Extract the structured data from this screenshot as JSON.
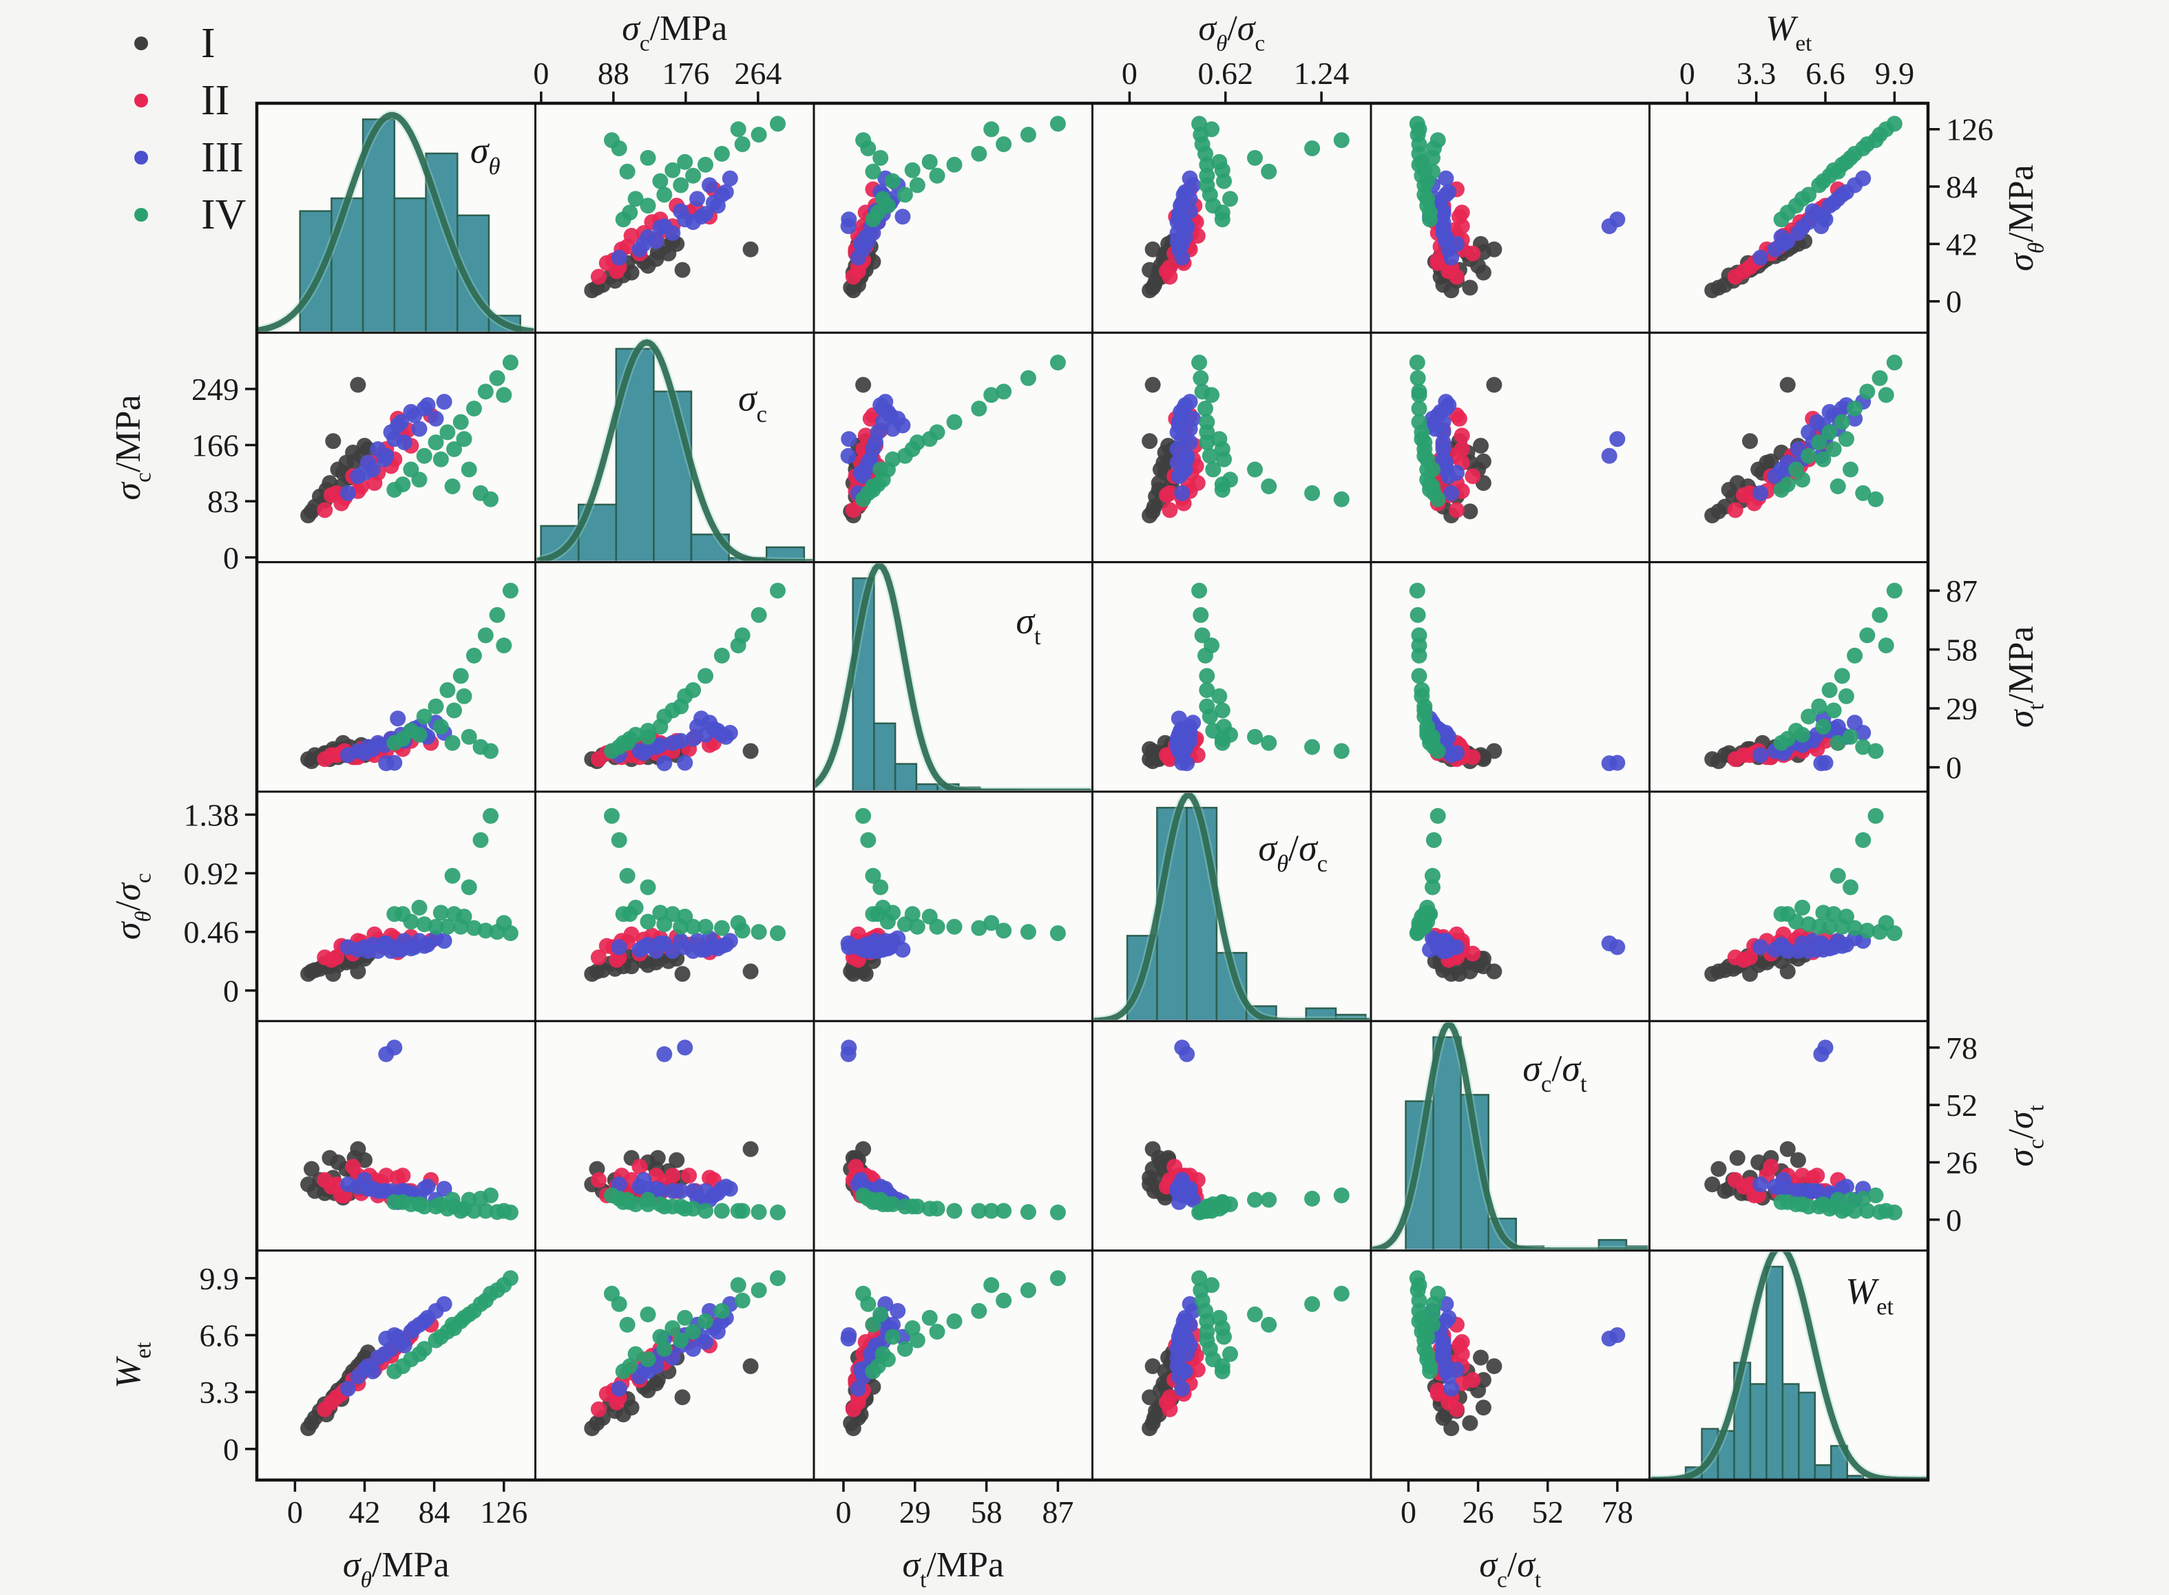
{
  "legend": {
    "items": [
      {
        "label": "I",
        "color": "#3f3f3f"
      },
      {
        "label": "II",
        "color": "#e72652"
      },
      {
        "label": "III",
        "color": "#4b50ce"
      },
      {
        "label": "IV",
        "color": "#2aa06f"
      }
    ]
  },
  "chart_data": {
    "type": "scatterplot-matrix",
    "title": "",
    "grid": "6x6 pairplot, histograms with normal-density curves on the diagonal",
    "style": {
      "bar_fill": "#3d8d9b",
      "bar_edge": "#2d5f4f",
      "curve_color": "#2e6b52",
      "curve_halo": "#9fd8c6",
      "frame_color": "#141414",
      "cell_fill": "#fbfbfa",
      "text_color": "#1a1a1a"
    },
    "variables": [
      {
        "id": "stheta",
        "axis_side_col": "bottom",
        "axis_side_row": "right",
        "label_segments": [
          {
            "t": "σ",
            "it": true
          },
          {
            "t": "θ",
            "sub": true,
            "it": true
          },
          {
            "t": "/MPa"
          }
        ],
        "short_segments": [
          {
            "t": "σ",
            "it": true
          },
          {
            "t": "θ",
            "sub": true,
            "it": true
          }
        ],
        "range": [
          -23,
          145
        ],
        "ticks_col": [
          0,
          42,
          84,
          126
        ],
        "ticks_row": [
          0,
          42,
          84,
          126
        ],
        "diag_label_pos": [
          0.82,
          0.26
        ],
        "hist": {
          "span_start": 0.155,
          "bin_width": 0.113,
          "heights": [
            0.57,
            0.63,
            1.0,
            0.63,
            0.84,
            0.55,
            0.08
          ],
          "curve_mu": 0.485,
          "curve_sigma": 0.16,
          "curve_peak": 1.02
        }
      },
      {
        "id": "sc",
        "axis_side_col": "top",
        "axis_side_row": "left",
        "label_segments": [
          {
            "t": "σ",
            "it": true
          },
          {
            "t": "c",
            "sub": true
          },
          {
            "t": "/MPa"
          }
        ],
        "short_segments": [
          {
            "t": "σ",
            "it": true
          },
          {
            "t": "c",
            "sub": true
          }
        ],
        "range": [
          -7,
          332
        ],
        "ticks_col": [
          0,
          88,
          176,
          264
        ],
        "ticks_row": [
          0,
          83,
          166,
          249
        ],
        "diag_label_pos": [
          0.78,
          0.34
        ],
        "hist": {
          "span_start": 0.02,
          "bin_width": 0.135,
          "heights": [
            0.17,
            0.27,
            1.0,
            0.8,
            0.13,
            0.02,
            0.07
          ],
          "curve_mu": 0.4,
          "curve_sigma": 0.125,
          "curve_peak": 1.03
        }
      },
      {
        "id": "st",
        "axis_side_col": "bottom",
        "axis_side_row": "right",
        "label_segments": [
          {
            "t": "σ",
            "it": true
          },
          {
            "t": "t",
            "sub": true
          },
          {
            "t": "/MPa"
          }
        ],
        "short_segments": [
          {
            "t": "σ",
            "it": true
          },
          {
            "t": "t",
            "sub": true
          }
        ],
        "range": [
          -12,
          101
        ],
        "ticks_col": [
          0,
          29,
          58,
          87
        ],
        "ticks_row": [
          0,
          29,
          58,
          87
        ],
        "diag_label_pos": [
          0.77,
          0.31
        ],
        "hist": {
          "span_start": 0.14,
          "bin_width": 0.076,
          "heights": [
            1.0,
            0.32,
            0.13,
            0.035,
            0.035,
            0.02,
            0.01,
            0.01
          ],
          "curve_mu": 0.235,
          "curve_sigma": 0.088,
          "curve_peak": 1.06
        }
      },
      {
        "id": "rthetac",
        "axis_side_col": "top",
        "axis_side_row": "left",
        "label_segments": [
          {
            "t": "σ",
            "it": true
          },
          {
            "t": "θ",
            "sub": true,
            "it": true
          },
          {
            "t": "/"
          },
          {
            "t": "σ",
            "it": true
          },
          {
            "t": "c",
            "sub": true
          }
        ],
        "short_segments": [
          {
            "t": "σ",
            "it": true
          },
          {
            "t": "θ",
            "sub": true,
            "it": true
          },
          {
            "t": "/"
          },
          {
            "t": "σ",
            "it": true
          },
          {
            "t": "c",
            "sub": true
          }
        ],
        "range": [
          -0.24,
          1.56
        ],
        "ticks_col": [
          0,
          0.62,
          1.24
        ],
        "ticks_row": [
          0,
          0.46,
          0.92,
          1.38
        ],
        "diag_label_pos": [
          0.72,
          0.3
        ],
        "hist": {
          "span_start": 0.125,
          "bin_width": 0.107,
          "heights": [
            0.4,
            1.0,
            1.0,
            0.32,
            0.07,
            0.0,
            0.06,
            0.03
          ],
          "curve_mu": 0.345,
          "curve_sigma": 0.092,
          "curve_peak": 1.06
        }
      },
      {
        "id": "rct",
        "axis_side_col": "bottom",
        "axis_side_row": "right",
        "label_segments": [
          {
            "t": "σ",
            "it": true
          },
          {
            "t": "c",
            "sub": true
          },
          {
            "t": "/"
          },
          {
            "t": "σ",
            "it": true
          },
          {
            "t": "t",
            "sub": true
          }
        ],
        "short_segments": [
          {
            "t": "σ",
            "it": true
          },
          {
            "t": "c",
            "sub": true
          },
          {
            "t": "/"
          },
          {
            "t": "σ",
            "it": true
          },
          {
            "t": "t",
            "sub": true
          }
        ],
        "range": [
          -14,
          90
        ],
        "ticks_col": [
          0,
          26,
          52,
          78
        ],
        "ticks_row": [
          0,
          26,
          52,
          78
        ],
        "diag_label_pos": [
          0.66,
          0.26
        ],
        "hist": {
          "span_start": 0.125,
          "bin_width": 0.099,
          "heights": [
            0.7,
            1.0,
            0.73,
            0.15,
            0.02,
            0,
            0,
            0.05,
            0.02
          ],
          "curve_mu": 0.28,
          "curve_sigma": 0.082,
          "curve_peak": 1.06
        }
      },
      {
        "id": "wet",
        "axis_side_col": "top",
        "axis_side_row": "left",
        "label_segments": [
          {
            "t": "W",
            "it": true
          },
          {
            "t": "et",
            "sub": true
          }
        ],
        "short_segments": [
          {
            "t": "W",
            "it": true
          },
          {
            "t": "et",
            "sub": true
          }
        ],
        "range": [
          -1.8,
          11.5
        ],
        "ticks_col": [
          0,
          3.3,
          6.6,
          9.9
        ],
        "ticks_row": [
          0,
          3.3,
          6.6,
          9.9
        ],
        "diag_label_pos": [
          0.79,
          0.23
        ],
        "hist": {
          "span_start": 0.13,
          "bin_width": 0.058,
          "heights": [
            0.06,
            0.24,
            0.23,
            0.55,
            0.45,
            1.0,
            0.45,
            0.41,
            0.07,
            0.16,
            0.02
          ],
          "curve_mu": 0.47,
          "curve_sigma": 0.115,
          "curve_peak": 1.09
        }
      }
    ],
    "groups": [
      {
        "name": "I",
        "color": "#3f3f3f",
        "points": [
          [
            8,
            62,
            4,
            0.13,
            16,
            1.2
          ],
          [
            12,
            75,
            6,
            0.16,
            13,
            1.8
          ],
          [
            15,
            90,
            5,
            0.17,
            18,
            2.2
          ],
          [
            18,
            84,
            7,
            0.21,
            12,
            2.6
          ],
          [
            21,
            110,
            4,
            0.19,
            28,
            2.4
          ],
          [
            24,
            96,
            8,
            0.25,
            12,
            3.1
          ],
          [
            26,
            130,
            5,
            0.2,
            26,
            3.4
          ],
          [
            28,
            105,
            9,
            0.27,
            12,
            2.9
          ],
          [
            31,
            140,
            6,
            0.22,
            23,
            3.8
          ],
          [
            33,
            118,
            10,
            0.28,
            12,
            4.2
          ],
          [
            35,
            155,
            7,
            0.23,
            22,
            4.5
          ],
          [
            38,
            255,
            8,
            0.15,
            32,
            4.8
          ],
          [
            40,
            150,
            11,
            0.27,
            14,
            5.0
          ],
          [
            42,
            165,
            6,
            0.25,
            27,
            5.3
          ],
          [
            10,
            68,
            3,
            0.15,
            23,
            1.5
          ],
          [
            23,
            172,
            9,
            0.13,
            19,
            3.0
          ],
          [
            29,
            125,
            12,
            0.23,
            10,
            3.6
          ],
          [
            36,
            142,
            5,
            0.25,
            28,
            4.0
          ],
          [
            19,
            100,
            7,
            0.19,
            14,
            2.0
          ],
          [
            44,
            160,
            10,
            0.28,
            16,
            5.6
          ]
        ]
      },
      {
        "name": "II",
        "color": "#e72652",
        "points": [
          [
            18,
            70,
            4,
            0.26,
            18,
            2.3
          ],
          [
            25,
            95,
            6,
            0.26,
            16,
            3.0
          ],
          [
            30,
            88,
            8,
            0.34,
            11,
            3.4
          ],
          [
            35,
            120,
            5,
            0.29,
            24,
            4.0
          ],
          [
            40,
            105,
            9,
            0.38,
            12,
            4.4
          ],
          [
            45,
            140,
            7,
            0.32,
            20,
            4.8
          ],
          [
            50,
            125,
            11,
            0.4,
            11,
            5.2
          ],
          [
            55,
            160,
            8,
            0.34,
            20,
            5.5
          ],
          [
            60,
            145,
            12,
            0.41,
            12,
            5.8
          ],
          [
            65,
            180,
            9,
            0.36,
            20,
            6.2
          ],
          [
            70,
            165,
            13,
            0.42,
            13,
            6.6
          ],
          [
            82,
            210,
            12,
            0.39,
            18,
            7.2
          ],
          [
            48,
            110,
            6,
            0.44,
            18,
            4.6
          ],
          [
            58,
            135,
            14,
            0.43,
            10,
            5.4
          ],
          [
            38,
            98,
            5,
            0.39,
            20,
            3.8
          ],
          [
            62,
            205,
            11,
            0.3,
            19,
            6.0
          ],
          [
            28,
            80,
            7,
            0.35,
            11,
            3.2
          ],
          [
            52,
            150,
            9,
            0.35,
            17,
            5.0
          ],
          [
            68,
            188,
            15,
            0.36,
            13,
            6.4
          ],
          [
            22,
            92,
            6,
            0.24,
            15,
            2.7
          ]
        ]
      },
      {
        "name": "III",
        "color": "#4b50ce",
        "points": [
          [
            32,
            95,
            6,
            0.34,
            16,
            3.5
          ],
          [
            38,
            120,
            8,
            0.32,
            15,
            4.2
          ],
          [
            44,
            140,
            10,
            0.31,
            14,
            4.8
          ],
          [
            50,
            160,
            12,
            0.31,
            13,
            5.3
          ],
          [
            55,
            150,
            2,
            0.37,
            75,
            6.4
          ],
          [
            60,
            175,
            2.2,
            0.34,
            78,
            6.6
          ],
          [
            58,
            185,
            14,
            0.31,
            13,
            5.8
          ],
          [
            64,
            200,
            16,
            0.32,
            13,
            6.2
          ],
          [
            70,
            215,
            18,
            0.33,
            12,
            6.8
          ],
          [
            75,
            190,
            20,
            0.39,
            10,
            7.2
          ],
          [
            80,
            225,
            15,
            0.36,
            15,
            7.6
          ],
          [
            85,
            205,
            22,
            0.41,
            9,
            8.0
          ],
          [
            90,
            230,
            17,
            0.39,
            14,
            8.4
          ],
          [
            47,
            130,
            9,
            0.36,
            14,
            4.5
          ],
          [
            66,
            170,
            13,
            0.39,
            13,
            6.0
          ],
          [
            72,
            210,
            19,
            0.34,
            11,
            7.0
          ],
          [
            54,
            145,
            11,
            0.37,
            13,
            5.5
          ],
          [
            62,
            195,
            24,
            0.32,
            8,
            6.5
          ],
          [
            78,
            220,
            16,
            0.35,
            14,
            7.4
          ],
          [
            42,
            125,
            7,
            0.34,
            18,
            4.6
          ]
        ]
      },
      {
        "name": "IV",
        "color": "#2aa06f",
        "points": [
          [
            60,
            100,
            12,
            0.6,
            8,
            4.5
          ],
          [
            70,
            130,
            18,
            0.54,
            7,
            5.2
          ],
          [
            78,
            150,
            25,
            0.52,
            6,
            5.8
          ],
          [
            85,
            170,
            30,
            0.5,
            6,
            6.3
          ],
          [
            92,
            185,
            38,
            0.5,
            5,
            6.8
          ],
          [
            100,
            200,
            45,
            0.5,
            4,
            7.4
          ],
          [
            108,
            220,
            55,
            0.49,
            4,
            8.0
          ],
          [
            115,
            245,
            65,
            0.47,
            4,
            8.6
          ],
          [
            122,
            265,
            75,
            0.46,
            3.5,
            9.2
          ],
          [
            130,
            288,
            87,
            0.45,
            3.3,
            9.9
          ],
          [
            88,
            145,
            20,
            0.61,
            7,
            6.5
          ],
          [
            96,
            160,
            28,
            0.6,
            6,
            7.0
          ],
          [
            105,
            130,
            15,
            0.81,
            9,
            7.8
          ],
          [
            112,
            95,
            10,
            1.18,
            9.5,
            8.4
          ],
          [
            118,
            86,
            8,
            1.37,
            11,
            9.0
          ],
          [
            95,
            105,
            12,
            0.9,
            9,
            7.2
          ],
          [
            75,
            115,
            16,
            0.65,
            7,
            5.5
          ],
          [
            102,
            175,
            35,
            0.58,
            5,
            7.6
          ],
          [
            65,
            108,
            14,
            0.6,
            8,
            4.8
          ],
          [
            126,
            240,
            60,
            0.53,
            4,
            9.5
          ]
        ]
      }
    ]
  }
}
